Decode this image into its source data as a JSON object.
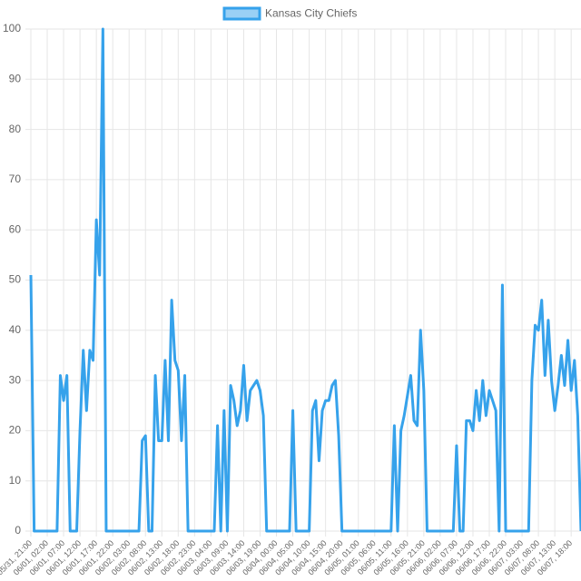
{
  "chart_data": {
    "type": "line",
    "categories": [
      "05/31, 21:00",
      null,
      null,
      null,
      null,
      "06/01, 02:00",
      null,
      null,
      null,
      null,
      "06/01, 07:00",
      null,
      null,
      null,
      null,
      "06/01, 12:00",
      null,
      null,
      null,
      null,
      "06/01, 17:00",
      null,
      null,
      null,
      null,
      "06/01, 22:00",
      null,
      null,
      null,
      null,
      "06/02, 03:00",
      null,
      null,
      null,
      null,
      "06/02, 08:00",
      null,
      null,
      null,
      null,
      "06/02, 13:00",
      null,
      null,
      null,
      null,
      "06/02, 18:00",
      null,
      null,
      null,
      null,
      "06/02, 23:00",
      null,
      null,
      null,
      null,
      "06/03, 04:00",
      null,
      null,
      null,
      null,
      "06/03, 09:00",
      null,
      null,
      null,
      null,
      "06/03, 14:00",
      null,
      null,
      null,
      null,
      "06/03, 19:00",
      null,
      null,
      null,
      null,
      "06/04, 00:00",
      null,
      null,
      null,
      null,
      "06/04, 05:00",
      null,
      null,
      null,
      null,
      "06/04, 10:00",
      null,
      null,
      null,
      null,
      "06/04, 15:00",
      null,
      null,
      null,
      null,
      "06/04, 20:00",
      null,
      null,
      null,
      null,
      "06/05, 01:00",
      null,
      null,
      null,
      null,
      "06/05, 06:00",
      null,
      null,
      null,
      null,
      "06/05, 11:00",
      null,
      null,
      null,
      null,
      "06/05, 16:00",
      null,
      null,
      null,
      null,
      "06/05, 21:00",
      null,
      null,
      null,
      null,
      "06/06, 02:00",
      null,
      null,
      null,
      null,
      "06/06, 07:00",
      null,
      null,
      null,
      null,
      "06/06, 12:00",
      null,
      null,
      null,
      null,
      "06/06, 17:00",
      null,
      null,
      null,
      null,
      "06/06, 22:00",
      null,
      null,
      null,
      null,
      "06/07, 03:00",
      null,
      null,
      null,
      null,
      "06/07, 08:00",
      null,
      null,
      null,
      null,
      "06/07, 13:00",
      null,
      null,
      null,
      null,
      "06/07, 18:00",
      null,
      null,
      null
    ],
    "series": [
      {
        "name": "Kansas City Chiefs",
        "color": "#36a2eb",
        "values": [
          51,
          0,
          0,
          0,
          0,
          0,
          0,
          0,
          0,
          31,
          26,
          31,
          0,
          0,
          0,
          20,
          36,
          24,
          36,
          34,
          62,
          51,
          100,
          0,
          0,
          0,
          0,
          0,
          0,
          0,
          0,
          0,
          0,
          0,
          18,
          19,
          0,
          0,
          31,
          18,
          18,
          34,
          18,
          46,
          34,
          32,
          18,
          31,
          0,
          0,
          0,
          0,
          0,
          0,
          0,
          0,
          0,
          21,
          0,
          24,
          0,
          29,
          26,
          21,
          24,
          33,
          22,
          28,
          29,
          30,
          28,
          23,
          0,
          0,
          0,
          0,
          0,
          0,
          0,
          0,
          24,
          0,
          0,
          0,
          0,
          0,
          24,
          26,
          14,
          24,
          26,
          26,
          29,
          30,
          19,
          0,
          0,
          0,
          0,
          0,
          0,
          0,
          0,
          0,
          0,
          0,
          0,
          0,
          0,
          0,
          0,
          21,
          0,
          20,
          23,
          27,
          31,
          22,
          21,
          40,
          28,
          0,
          0,
          0,
          0,
          0,
          0,
          0,
          0,
          0,
          17,
          0,
          0,
          22,
          22,
          20,
          28,
          22,
          30,
          23,
          28,
          26,
          24,
          0,
          49,
          0,
          0,
          0,
          0,
          0,
          0,
          0,
          0,
          30,
          41,
          40,
          46,
          31,
          42,
          30,
          24,
          29,
          35,
          29,
          38,
          28,
          34,
          23,
          0
        ]
      }
    ],
    "ylim": [
      0,
      100
    ],
    "yticks": [
      0,
      10,
      20,
      30,
      40,
      50,
      60,
      70,
      80,
      90,
      100
    ],
    "grid": true,
    "legend": "top"
  }
}
